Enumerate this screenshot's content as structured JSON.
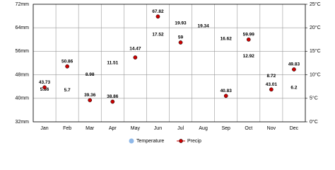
{
  "chart_data": {
    "type": "line",
    "categories": [
      "Jan",
      "Feb",
      "Mar",
      "Apr",
      "May",
      "Jun",
      "Jul",
      "Aug",
      "Sep",
      "Oct",
      "Nov",
      "Dec"
    ],
    "series": [
      {
        "name": "Temperature",
        "color": "#8fb8e8",
        "axis": "y2",
        "values": [
          5.86,
          5.7,
          8.98,
          11.51,
          14.47,
          17.52,
          19.93,
          19.34,
          16.62,
          12.92,
          8.72,
          6.2
        ]
      },
      {
        "name": "Precip",
        "color": "#cc0000",
        "values": [
          43.73,
          50.86,
          39.36,
          38.86,
          53.9,
          67.82,
          59,
          null,
          40.83,
          59.99,
          43.01,
          49.83
        ],
        "value_labels": [
          "43.73",
          "50.86",
          "39.36",
          "38.86",
          null,
          "67.82",
          "59",
          null,
          "40.83",
          "59.99",
          "43.01",
          "49.83"
        ]
      }
    ],
    "ylim": [
      32,
      72
    ],
    "yticks": [
      {
        "value": 32,
        "label": "32mm"
      },
      {
        "value": 40,
        "label": "40mm"
      },
      {
        "value": 48,
        "label": "48mm"
      },
      {
        "value": 56,
        "label": "56mm"
      },
      {
        "value": 64,
        "label": "64mm"
      },
      {
        "value": 72,
        "label": "72mm"
      }
    ],
    "y2lim": [
      0,
      25
    ],
    "y2ticks": [
      {
        "value": 0,
        "label": "0°C"
      },
      {
        "value": 5,
        "label": "5°C"
      },
      {
        "value": 10,
        "label": "10°C"
      },
      {
        "value": 15,
        "label": "15°C"
      },
      {
        "value": 20,
        "label": "20°C"
      },
      {
        "value": 25,
        "label": "25°C"
      }
    ],
    "grid": true
  }
}
